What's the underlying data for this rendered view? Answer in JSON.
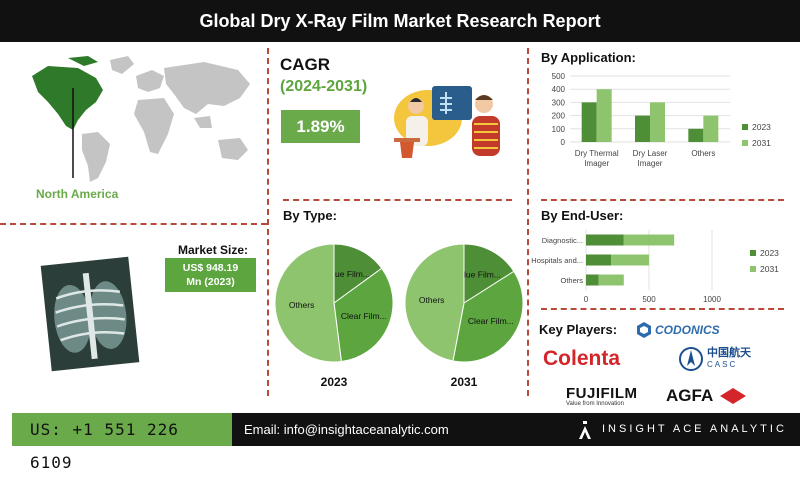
{
  "title": "Global Dry X-Ray Film Market Research Report",
  "cagr": {
    "label": "CAGR",
    "period": "(2024-2031)",
    "value": "1.89%"
  },
  "region": {
    "label": "North America"
  },
  "market_size": {
    "label": "Market Size:",
    "value_line1": "US$ 948.19",
    "value_line2": "Mn (2023)"
  },
  "sections": {
    "by_type": "By Type:",
    "by_application": "By Application:",
    "by_end_user": "By End-User:",
    "key_players": "Key Players:"
  },
  "key_players": [
    {
      "name": "CODONICS"
    },
    {
      "name": "Colenta"
    },
    {
      "name": "CASC",
      "native": "中国航天"
    },
    {
      "name": "FUJIFILM",
      "tagline": "Value from Innovation"
    },
    {
      "name": "AGFA"
    }
  ],
  "footer": {
    "phone": "US: +1 551 226 6109",
    "email": "Email: info@insightaceanalytic.com",
    "brand": "INSIGHT ACE ANALYTIC"
  },
  "colors": {
    "dark_green": "#4e8e36",
    "light_green": "#8fc46e",
    "accent_green": "#6aaa4a",
    "divider": "#b94a3a",
    "title_bg": "#111111"
  },
  "chart_data": [
    {
      "type": "pie",
      "title": "By Type:",
      "caption": "2023",
      "slices": [
        {
          "label": "Blue Film...",
          "value": 15
        },
        {
          "label": "Clear Film...",
          "value": 33
        },
        {
          "label": "Others",
          "value": 52
        }
      ]
    },
    {
      "type": "pie",
      "title": "By Type:",
      "caption": "2031",
      "slices": [
        {
          "label": "Blue Film...",
          "value": 16
        },
        {
          "label": "Clear Film...",
          "value": 37
        },
        {
          "label": "Others",
          "value": 47
        }
      ]
    },
    {
      "type": "bar",
      "title": "By Application:",
      "categories": [
        "Dry Thermal Imager",
        "Dry Laser Imager",
        "Others"
      ],
      "series": [
        {
          "name": "2023",
          "values": [
            300,
            200,
            100
          ]
        },
        {
          "name": "2031",
          "values": [
            400,
            300,
            200
          ]
        }
      ],
      "ylim": [
        0,
        500
      ],
      "yticks": [
        "0",
        "100",
        "200",
        "300",
        "400",
        "500"
      ],
      "legend": "right"
    },
    {
      "type": "bar",
      "orientation": "horizontal",
      "title": "By End-User:",
      "categories": [
        "Diagnostic...",
        "Hospitals and...",
        "Others"
      ],
      "series": [
        {
          "name": "2023",
          "values": [
            300,
            200,
            100
          ]
        },
        {
          "name": "2031",
          "values": [
            400,
            300,
            200
          ]
        }
      ],
      "xlim": [
        0,
        1000
      ],
      "xticks": [
        "0",
        "500",
        "1000"
      ],
      "stacked": true,
      "legend": "right"
    }
  ]
}
